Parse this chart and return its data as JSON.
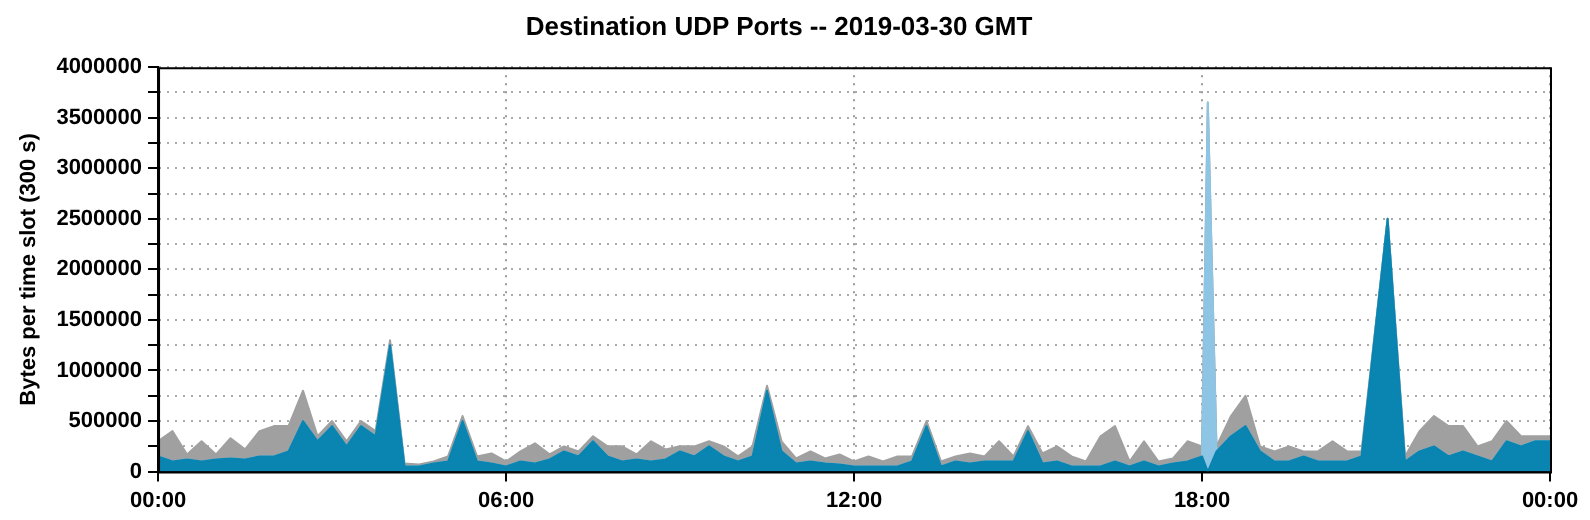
{
  "chart_data": {
    "type": "area",
    "title": "Destination UDP Ports -- 2019-03-30 GMT",
    "ylabel": "Bytes per time slot (300 s)",
    "stacked": true,
    "grid": true,
    "legend": false,
    "marker": "none",
    "x": [
      0,
      0.25,
      0.5,
      0.75,
      1,
      1.25,
      1.5,
      1.75,
      2,
      2.25,
      2.5,
      2.75,
      3,
      3.25,
      3.5,
      3.75,
      4,
      4.25,
      4.5,
      4.75,
      5,
      5.25,
      5.5,
      5.75,
      6,
      6.25,
      6.5,
      6.75,
      7,
      7.25,
      7.5,
      7.75,
      8,
      8.25,
      8.5,
      8.75,
      9,
      9.25,
      9.5,
      9.75,
      10,
      10.25,
      10.5,
      10.75,
      11,
      11.25,
      11.5,
      11.75,
      12,
      12.25,
      12.5,
      12.75,
      13,
      13.25,
      13.5,
      13.75,
      14,
      14.25,
      14.5,
      14.75,
      15,
      15.25,
      15.5,
      15.75,
      16,
      16.25,
      16.5,
      16.75,
      17,
      17.25,
      17.5,
      17.75,
      18,
      18.1,
      18.25,
      18.5,
      18.75,
      19,
      19.25,
      19.5,
      19.75,
      20,
      20.25,
      20.5,
      20.75,
      21.2,
      21.5,
      21.75,
      22,
      22.25,
      22.5,
      22.75,
      23,
      23.25,
      23.5,
      23.75,
      24
    ],
    "series": [
      {
        "color": "#0a84b0",
        "values": [
          150000,
          100000,
          120000,
          100000,
          120000,
          130000,
          120000,
          150000,
          150000,
          200000,
          500000,
          300000,
          450000,
          250000,
          450000,
          350000,
          1250000,
          50000,
          50000,
          80000,
          100000,
          500000,
          100000,
          80000,
          50000,
          100000,
          80000,
          120000,
          200000,
          150000,
          300000,
          150000,
          100000,
          120000,
          100000,
          120000,
          200000,
          150000,
          250000,
          150000,
          100000,
          150000,
          800000,
          200000,
          80000,
          100000,
          80000,
          70000,
          50000,
          50000,
          50000,
          50000,
          100000,
          450000,
          50000,
          100000,
          80000,
          100000,
          100000,
          100000,
          400000,
          80000,
          100000,
          50000,
          50000,
          50000,
          100000,
          50000,
          100000,
          50000,
          80000,
          100000,
          150000,
          0,
          200000,
          350000,
          450000,
          200000,
          100000,
          100000,
          150000,
          100000,
          100000,
          100000,
          150000,
          2500000,
          100000,
          200000,
          250000,
          150000,
          200000,
          150000,
          100000,
          300000,
          250000,
          300000,
          300000
        ]
      },
      {
        "color": "#8ec5e4",
        "values": [
          0,
          0,
          0,
          0,
          0,
          0,
          0,
          0,
          0,
          0,
          0,
          0,
          0,
          0,
          0,
          0,
          0,
          0,
          0,
          0,
          0,
          0,
          0,
          0,
          0,
          0,
          0,
          0,
          0,
          0,
          0,
          0,
          0,
          0,
          0,
          0,
          0,
          0,
          0,
          0,
          0,
          0,
          0,
          0,
          0,
          0,
          0,
          0,
          0,
          0,
          0,
          0,
          0,
          0,
          0,
          0,
          0,
          0,
          0,
          0,
          0,
          0,
          0,
          0,
          0,
          0,
          0,
          0,
          0,
          0,
          0,
          0,
          0,
          3650000,
          0,
          0,
          0,
          0,
          0,
          0,
          0,
          0,
          0,
          0,
          0,
          0,
          0,
          0,
          0,
          0,
          0,
          0,
          0,
          0,
          0,
          0,
          0
        ]
      },
      {
        "color": "#a0a0a0",
        "values": [
          150000,
          300000,
          50000,
          200000,
          50000,
          200000,
          100000,
          250000,
          300000,
          250000,
          300000,
          50000,
          50000,
          50000,
          50000,
          50000,
          50000,
          30000,
          20000,
          20000,
          50000,
          50000,
          50000,
          100000,
          50000,
          100000,
          200000,
          50000,
          50000,
          50000,
          50000,
          100000,
          150000,
          50000,
          200000,
          100000,
          50000,
          100000,
          50000,
          100000,
          50000,
          100000,
          50000,
          100000,
          50000,
          100000,
          50000,
          100000,
          50000,
          100000,
          50000,
          100000,
          50000,
          50000,
          50000,
          50000,
          100000,
          50000,
          200000,
          50000,
          50000,
          100000,
          150000,
          100000,
          50000,
          300000,
          350000,
          50000,
          200000,
          50000,
          50000,
          200000,
          100000,
          0,
          50000,
          200000,
          300000,
          50000,
          100000,
          150000,
          50000,
          100000,
          200000,
          100000,
          50000,
          0,
          50000,
          200000,
          300000,
          300000,
          250000,
          100000,
          200000,
          200000,
          100000,
          50000,
          50000
        ]
      }
    ],
    "xlim": [
      0,
      24
    ],
    "xticks": [
      {
        "value": 0,
        "label": "00:00"
      },
      {
        "value": 6,
        "label": "06:00"
      },
      {
        "value": 12,
        "label": "12:00"
      },
      {
        "value": 18,
        "label": "18:00"
      },
      {
        "value": 24,
        "label": "00:00"
      }
    ],
    "ylim": [
      0,
      4000000
    ],
    "yticks": [
      0,
      {
        "value": 250000,
        "label": null
      },
      500000,
      {
        "value": 750000,
        "label": null
      },
      1000000,
      {
        "value": 1250000,
        "label": null
      },
      1500000,
      {
        "value": 1750000,
        "label": null
      },
      2000000,
      {
        "value": 2250000,
        "label": null
      },
      2500000,
      {
        "value": 2750000,
        "label": null
      },
      3000000,
      {
        "value": 3250000,
        "label": null
      },
      3500000,
      {
        "value": 3750000,
        "label": null
      },
      4000000
    ]
  }
}
